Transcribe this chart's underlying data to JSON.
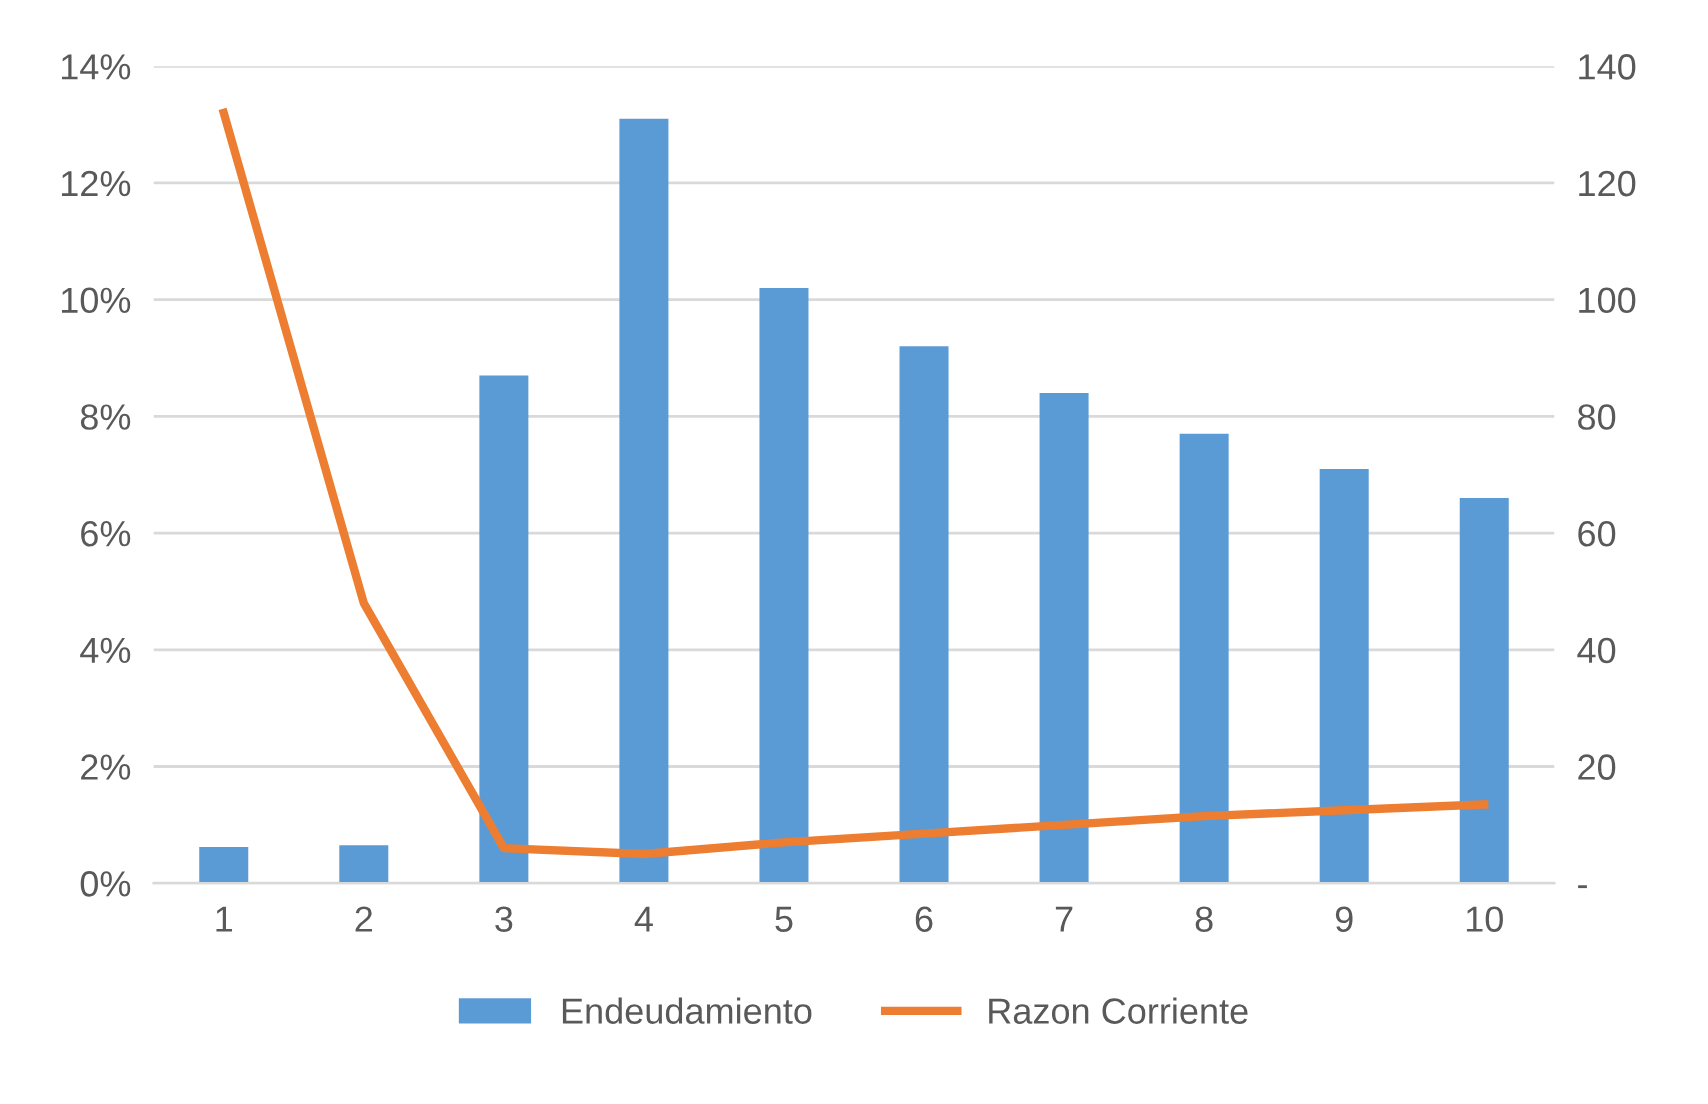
{
  "chart_data": {
    "type": "bar",
    "categories": [
      "1",
      "2",
      "3",
      "4",
      "5",
      "6",
      "7",
      "8",
      "9",
      "10"
    ],
    "series": [
      {
        "name": "Endeudamiento",
        "color": "#5b9bd5",
        "values": [
          0.62,
          0.65,
          8.7,
          13.1,
          10.2,
          9.2,
          8.4,
          7.7,
          7.1,
          6.6
        ]
      },
      {
        "name": "Razon Corriente",
        "type": "line",
        "axis": "y2",
        "color": "#ed7d31",
        "values": [
          132,
          48,
          6,
          5,
          7,
          8.5,
          10,
          11.5,
          12.5,
          13.5
        ]
      }
    ],
    "ylim": [
      0,
      14
    ],
    "yticks": [
      {
        "value": 0,
        "label": "0%"
      },
      {
        "value": 2,
        "label": "2%"
      },
      {
        "value": 4,
        "label": "4%"
      },
      {
        "value": 6,
        "label": "6%"
      },
      {
        "value": 8,
        "label": "8%"
      },
      {
        "value": 10,
        "label": "10%"
      },
      {
        "value": 12,
        "label": "12%"
      },
      {
        "value": 14,
        "label": "14%"
      }
    ],
    "y2lim": [
      0,
      140
    ],
    "y2ticks": [
      {
        "value": 0,
        "label": "-"
      },
      20,
      40,
      60,
      80,
      100,
      120,
      140
    ],
    "grid": "y",
    "legend": "bottom",
    "marker": "none"
  }
}
